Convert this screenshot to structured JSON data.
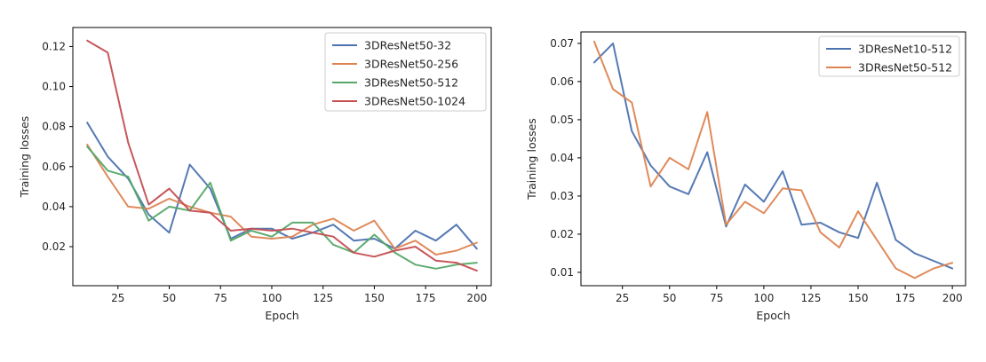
{
  "chart_data": [
    {
      "type": "line",
      "xlabel": "Epoch",
      "ylabel": "Training losses",
      "xlim": [
        3,
        207
      ],
      "ylim": [
        0.0005,
        0.1295
      ],
      "xticks": [
        25,
        50,
        75,
        100,
        125,
        150,
        175,
        200
      ],
      "yticks": [
        0.02,
        0.04,
        0.06,
        0.08,
        0.1,
        0.12
      ],
      "ytick_labels": [
        "0.02",
        "0.04",
        "0.06",
        "0.08",
        "0.10",
        "0.12"
      ],
      "grid": false,
      "legend": "top-right",
      "x": [
        10,
        20,
        30,
        40,
        50,
        60,
        70,
        80,
        90,
        100,
        110,
        120,
        130,
        140,
        150,
        160,
        170,
        180,
        190,
        200
      ],
      "series": [
        {
          "name": "3DResNet50-32",
          "color": "#4c72b0",
          "values": [
            0.082,
            0.065,
            0.054,
            0.036,
            0.027,
            0.061,
            0.049,
            0.024,
            0.029,
            0.029,
            0.024,
            0.027,
            0.031,
            0.023,
            0.024,
            0.019,
            0.028,
            0.023,
            0.031,
            0.019
          ]
        },
        {
          "name": "3DResNet50-256",
          "color": "#dd8452",
          "values": [
            0.071,
            0.055,
            0.04,
            0.039,
            0.044,
            0.04,
            0.037,
            0.035,
            0.025,
            0.024,
            0.025,
            0.031,
            0.034,
            0.028,
            0.033,
            0.019,
            0.023,
            0.016,
            0.018,
            0.022
          ]
        },
        {
          "name": "3DResNet50-512",
          "color": "#55a868",
          "values": [
            0.07,
            0.058,
            0.055,
            0.033,
            0.04,
            0.038,
            0.052,
            0.023,
            0.028,
            0.025,
            0.032,
            0.032,
            0.021,
            0.017,
            0.026,
            0.017,
            0.011,
            0.009,
            0.011,
            0.012
          ]
        },
        {
          "name": "3DResNet50-1024",
          "color": "#c44e52",
          "values": [
            0.123,
            0.117,
            0.072,
            0.041,
            0.049,
            0.038,
            0.037,
            0.028,
            0.029,
            0.028,
            0.029,
            0.027,
            0.025,
            0.017,
            0.015,
            0.018,
            0.02,
            0.013,
            0.012,
            0.008
          ]
        }
      ]
    },
    {
      "type": "line",
      "xlabel": "Epoch",
      "ylabel": "Training losses",
      "xlim": [
        3,
        207
      ],
      "ylim": [
        0.0065,
        0.073
      ],
      "xticks": [
        25,
        50,
        75,
        100,
        125,
        150,
        175,
        200
      ],
      "yticks": [
        0.01,
        0.02,
        0.03,
        0.04,
        0.05,
        0.06,
        0.07
      ],
      "ytick_labels": [
        "0.01",
        "0.02",
        "0.03",
        "0.04",
        "0.05",
        "0.06",
        "0.07"
      ],
      "grid": false,
      "legend": "top-right",
      "x": [
        10,
        20,
        30,
        40,
        50,
        60,
        70,
        80,
        90,
        100,
        110,
        120,
        130,
        140,
        150,
        160,
        170,
        180,
        190,
        200
      ],
      "series": [
        {
          "name": "3DResNet10-512",
          "color": "#4c72b0",
          "values": [
            0.065,
            0.07,
            0.047,
            0.038,
            0.0325,
            0.0305,
            0.0415,
            0.022,
            0.033,
            0.0285,
            0.0365,
            0.0225,
            0.023,
            0.0205,
            0.019,
            0.0335,
            0.0185,
            0.015,
            0.013,
            0.011
          ]
        },
        {
          "name": "3DResNet50-512",
          "color": "#dd8452",
          "values": [
            0.0705,
            0.058,
            0.0545,
            0.0325,
            0.04,
            0.037,
            0.052,
            0.0225,
            0.0285,
            0.0255,
            0.032,
            0.0315,
            0.0205,
            0.0165,
            0.026,
            0.0185,
            0.011,
            0.0085,
            0.011,
            0.0125
          ]
        }
      ]
    }
  ]
}
